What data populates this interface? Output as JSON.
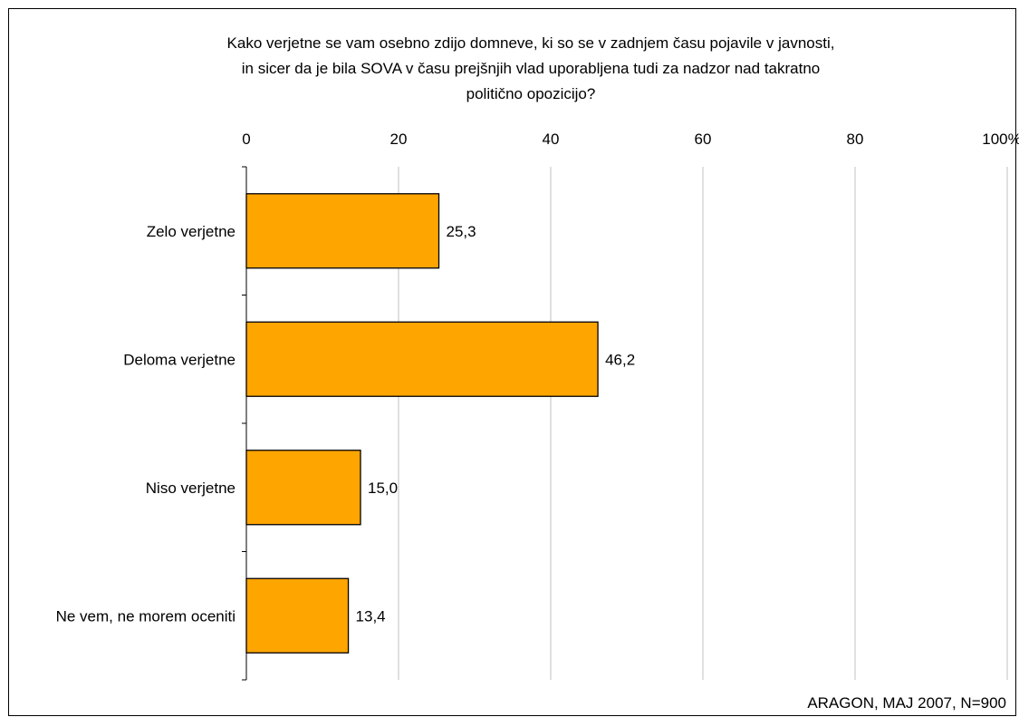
{
  "chart_data": {
    "type": "bar",
    "orientation": "horizontal",
    "title_lines": [
      "Kako verjetne se vam osebno zdijo domneve, ki so se v zadnjem času pojavile v javnosti,",
      "in sicer da je bila SOVA v času prejšnjih vlad uporabljena tudi za nadzor nad takratno",
      "politično opozicijo?"
    ],
    "categories": [
      "Zelo verjetne",
      "Deloma verjetne",
      "Niso verjetne",
      "Ne vem, ne morem oceniti"
    ],
    "values": [
      25.3,
      46.2,
      15.0,
      13.4
    ],
    "value_labels": [
      "25,3",
      "46,2",
      "15,0",
      "13,4"
    ],
    "x_ticks": [
      "0",
      "20",
      "40",
      "60",
      "80",
      "100%"
    ],
    "x_tick_values": [
      0,
      20,
      40,
      60,
      80,
      100
    ],
    "xlim": [
      0,
      100
    ],
    "x_axis_position": "top",
    "grid": true,
    "legend": "none",
    "bar_color": "#FFA500",
    "source_note": "ARAGON, MAJ 2007, N=900"
  }
}
